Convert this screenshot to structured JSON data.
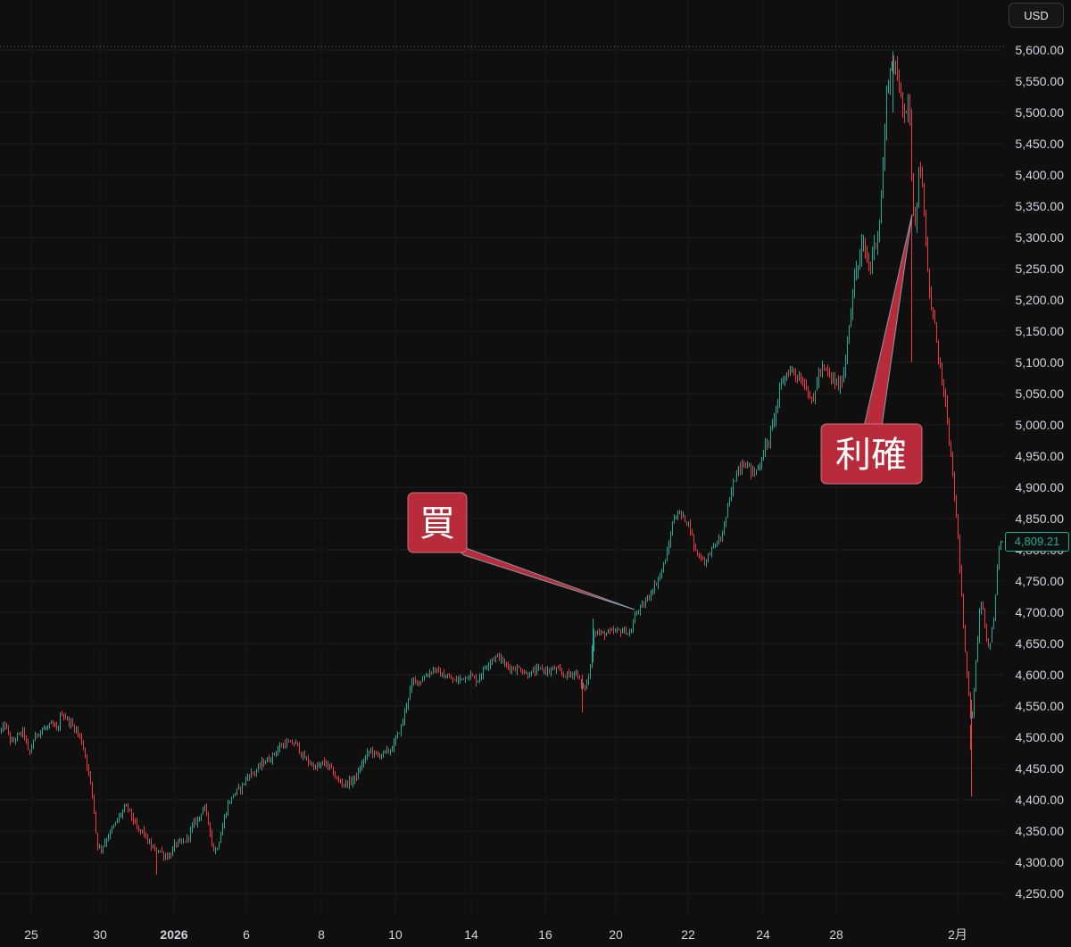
{
  "currency_label": "USD",
  "current_price_label": "4,809.21",
  "colors": {
    "background": "#0f0f0f",
    "up": "#22ab94",
    "down": "#f23645",
    "callout": "#b82b3a",
    "axis_text": "#d1d4dc",
    "grid": "#1f1f1f"
  },
  "annotations": [
    {
      "text": "買",
      "target_date": "Jan 20",
      "target_price": 4700
    },
    {
      "text": "利確",
      "target_date": "Jan 29",
      "target_price": 5340
    }
  ],
  "chart_data": {
    "type": "candlestick",
    "title": "",
    "xlabel": "",
    "ylabel": "",
    "ylim": [
      4225,
      5625
    ],
    "y_ticks": [
      "4,250.00",
      "4,300.00",
      "4,350.00",
      "4,400.00",
      "4,450.00",
      "4,500.00",
      "4,550.00",
      "4,600.00",
      "4,650.00",
      "4,700.00",
      "4,750.00",
      "4,800.00",
      "4,850.00",
      "4,900.00",
      "4,950.00",
      "5,000.00",
      "5,050.00",
      "5,100.00",
      "5,150.00",
      "5,200.00",
      "5,250.00",
      "5,300.00",
      "5,350.00",
      "5,400.00",
      "5,450.00",
      "5,500.00",
      "5,550.00",
      "5,600.00"
    ],
    "x_ticks": [
      {
        "label": "25",
        "bold": false
      },
      {
        "label": "30",
        "bold": false
      },
      {
        "label": "2026",
        "bold": true
      },
      {
        "label": "6",
        "bold": false
      },
      {
        "label": "8",
        "bold": false
      },
      {
        "label": "10",
        "bold": false
      },
      {
        "label": "14",
        "bold": false
      },
      {
        "label": "16",
        "bold": false
      },
      {
        "label": "20",
        "bold": false
      },
      {
        "label": "22",
        "bold": false
      },
      {
        "label": "24",
        "bold": false
      },
      {
        "label": "28",
        "bold": false
      },
      {
        "label": "2月",
        "bold": false
      }
    ],
    "high_marker": 5600,
    "last_price": 4809.21,
    "price_path": [
      [
        0,
        4510
      ],
      [
        6,
        4520
      ],
      [
        12,
        4490
      ],
      [
        18,
        4500
      ],
      [
        26,
        4510
      ],
      [
        32,
        4470
      ],
      [
        38,
        4500
      ],
      [
        44,
        4510
      ],
      [
        52,
        4515
      ],
      [
        58,
        4520
      ],
      [
        64,
        4510
      ],
      [
        68,
        4540
      ],
      [
        74,
        4530
      ],
      [
        80,
        4520
      ],
      [
        86,
        4510
      ],
      [
        92,
        4490
      ],
      [
        98,
        4450
      ],
      [
        104,
        4400
      ],
      [
        108,
        4330
      ],
      [
        112,
        4320
      ],
      [
        120,
        4340
      ],
      [
        128,
        4360
      ],
      [
        136,
        4380
      ],
      [
        142,
        4390
      ],
      [
        148,
        4370
      ],
      [
        154,
        4350
      ],
      [
        160,
        4350
      ],
      [
        166,
        4330
      ],
      [
        172,
        4320
      ],
      [
        178,
        4320
      ],
      [
        184,
        4310
      ],
      [
        190,
        4310
      ],
      [
        196,
        4330
      ],
      [
        204,
        4330
      ],
      [
        210,
        4340
      ],
      [
        216,
        4360
      ],
      [
        222,
        4370
      ],
      [
        228,
        4390
      ],
      [
        234,
        4360
      ],
      [
        238,
        4320
      ],
      [
        242,
        4320
      ],
      [
        248,
        4350
      ],
      [
        254,
        4390
      ],
      [
        262,
        4410
      ],
      [
        270,
        4420
      ],
      [
        278,
        4440
      ],
      [
        286,
        4445
      ],
      [
        294,
        4460
      ],
      [
        302,
        4465
      ],
      [
        310,
        4480
      ],
      [
        318,
        4490
      ],
      [
        326,
        4490
      ],
      [
        332,
        4490
      ],
      [
        338,
        4470
      ],
      [
        346,
        4460
      ],
      [
        354,
        4450
      ],
      [
        362,
        4460
      ],
      [
        370,
        4450
      ],
      [
        378,
        4430
      ],
      [
        386,
        4425
      ],
      [
        394,
        4430
      ],
      [
        400,
        4440
      ],
      [
        406,
        4460
      ],
      [
        414,
        4480
      ],
      [
        422,
        4470
      ],
      [
        430,
        4475
      ],
      [
        438,
        4480
      ],
      [
        444,
        4500
      ],
      [
        450,
        4520
      ],
      [
        456,
        4560
      ],
      [
        462,
        4590
      ],
      [
        470,
        4590
      ],
      [
        478,
        4600
      ],
      [
        486,
        4610
      ],
      [
        494,
        4600
      ],
      [
        502,
        4595
      ],
      [
        510,
        4590
      ],
      [
        518,
        4595
      ],
      [
        526,
        4600
      ],
      [
        534,
        4590
      ],
      [
        542,
        4610
      ],
      [
        550,
        4625
      ],
      [
        558,
        4630
      ],
      [
        566,
        4615
      ],
      [
        574,
        4610
      ],
      [
        582,
        4610
      ],
      [
        590,
        4600
      ],
      [
        598,
        4605
      ],
      [
        606,
        4610
      ],
      [
        614,
        4605
      ],
      [
        622,
        4610
      ],
      [
        630,
        4600
      ],
      [
        638,
        4600
      ],
      [
        646,
        4605
      ],
      [
        652,
        4575
      ],
      [
        658,
        4590
      ],
      [
        662,
        4620
      ],
      [
        664,
        4670
      ],
      [
        668,
        4668
      ],
      [
        676,
        4665
      ],
      [
        684,
        4668
      ],
      [
        692,
        4670
      ],
      [
        700,
        4670
      ],
      [
        706,
        4665
      ],
      [
        712,
        4700
      ],
      [
        720,
        4710
      ],
      [
        728,
        4730
      ],
      [
        736,
        4750
      ],
      [
        742,
        4770
      ],
      [
        748,
        4800
      ],
      [
        754,
        4850
      ],
      [
        760,
        4860
      ],
      [
        766,
        4850
      ],
      [
        772,
        4840
      ],
      [
        778,
        4800
      ],
      [
        784,
        4790
      ],
      [
        790,
        4780
      ],
      [
        796,
        4800
      ],
      [
        802,
        4810
      ],
      [
        808,
        4820
      ],
      [
        814,
        4860
      ],
      [
        820,
        4900
      ],
      [
        826,
        4930
      ],
      [
        832,
        4940
      ],
      [
        838,
        4935
      ],
      [
        844,
        4920
      ],
      [
        850,
        4935
      ],
      [
        856,
        4960
      ],
      [
        862,
        4980
      ],
      [
        868,
        5020
      ],
      [
        874,
        5060
      ],
      [
        880,
        5080
      ],
      [
        886,
        5090
      ],
      [
        892,
        5080
      ],
      [
        898,
        5070
      ],
      [
        904,
        5060
      ],
      [
        910,
        5030
      ],
      [
        916,
        5080
      ],
      [
        922,
        5090
      ],
      [
        928,
        5080
      ],
      [
        934,
        5070
      ],
      [
        940,
        5060
      ],
      [
        946,
        5090
      ],
      [
        950,
        5150
      ],
      [
        954,
        5200
      ],
      [
        958,
        5240
      ],
      [
        962,
        5260
      ],
      [
        966,
        5290
      ],
      [
        970,
        5270
      ],
      [
        974,
        5250
      ],
      [
        978,
        5280
      ],
      [
        982,
        5300
      ],
      [
        986,
        5340
      ],
      [
        990,
        5440
      ],
      [
        993,
        5530
      ],
      [
        996,
        5560
      ],
      [
        999,
        5580
      ],
      [
        1002,
        5570
      ],
      [
        1006,
        5550
      ],
      [
        1010,
        5520
      ],
      [
        1014,
        5500
      ],
      [
        1018,
        5520
      ],
      [
        1020,
        5450
      ],
      [
        1022,
        5360
      ],
      [
        1025,
        5330
      ],
      [
        1028,
        5380
      ],
      [
        1030,
        5420
      ],
      [
        1033,
        5390
      ],
      [
        1036,
        5300
      ],
      [
        1040,
        5220
      ],
      [
        1044,
        5180
      ],
      [
        1048,
        5150
      ],
      [
        1052,
        5100
      ],
      [
        1056,
        5060
      ],
      [
        1060,
        5020
      ],
      [
        1064,
        4960
      ],
      [
        1068,
        4900
      ],
      [
        1072,
        4840
      ],
      [
        1076,
        4750
      ],
      [
        1080,
        4650
      ],
      [
        1084,
        4580
      ],
      [
        1088,
        4520
      ],
      [
        1090,
        4560
      ],
      [
        1094,
        4640
      ],
      [
        1098,
        4720
      ],
      [
        1102,
        4700
      ],
      [
        1106,
        4640
      ],
      [
        1110,
        4660
      ],
      [
        1114,
        4700
      ],
      [
        1118,
        4800
      ],
      [
        1122,
        4809
      ]
    ]
  }
}
